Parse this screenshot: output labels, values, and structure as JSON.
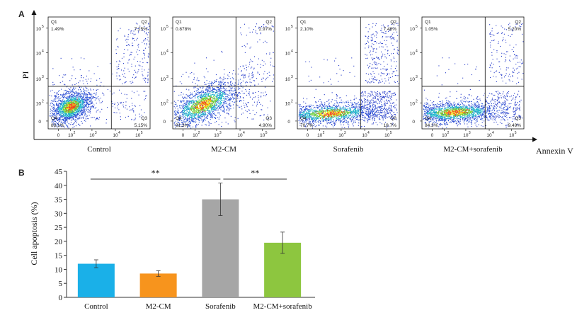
{
  "panel_a": {
    "letter": "A",
    "y_axis_label": "PI",
    "x_axis_label": "Annexin V",
    "plots": [
      {
        "label": "Control",
        "q1": "Q1",
        "q1_value": "1.49%",
        "q2": "Q2",
        "q2_value": "7.25%",
        "q3": "Q3",
        "q3_value": "5.15%",
        "q4": "Q4",
        "q4_value": "86.1%"
      },
      {
        "label": "M2-CM",
        "q1": "Q1",
        "q1_value": "0.878%",
        "q2": "Q2",
        "q2_value": "2.97%",
        "q3": "Q3",
        "q3_value": "4.90%",
        "q4": "Q4",
        "q4_value": "91.3%"
      },
      {
        "label": "Sorafenib",
        "q1": "Q1",
        "q1_value": "2.10%",
        "q2": "Q2",
        "q2_value": "7.48%",
        "q3": "Q3",
        "q3_value": "19.7%",
        "q4": "Q4",
        "q4_value": "70.7%"
      },
      {
        "label": "M2-CM+sorafenib",
        "q1": "Q1",
        "q1_value": "1.05%",
        "q2": "Q2",
        "q2_value": "5.20%",
        "q3": "Q3",
        "q3_value": "9.49%",
        "q4": "Q4",
        "q4_value": "84.3%"
      }
    ],
    "y_ticks": [
      "10",
      "10",
      "10",
      "10",
      "0"
    ],
    "y_tick_exponents": [
      "5",
      "4",
      "3",
      "2",
      ""
    ],
    "x_ticks": [
      "0",
      "10",
      "10",
      "10",
      "10"
    ],
    "x_tick_exponents": [
      "",
      "2",
      "3",
      "4",
      "5"
    ]
  },
  "colors": {
    "control": "#1ab0e8",
    "m2cm": "#f7941d",
    "sorafenib": "#a6a6a6",
    "combo": "#8dc63f"
  },
  "chart_data": {
    "type": "bar",
    "panel_letter": "B",
    "categories": [
      "Control",
      "M2-CM",
      "Sorafenib",
      "M2-CM+sorafenib"
    ],
    "values": [
      12,
      8.5,
      35,
      19.5
    ],
    "errors": [
      1.4,
      1.0,
      5.8,
      3.8
    ],
    "ylabel": "Cell apoptosis (%)",
    "xlabel": "",
    "ylim": [
      0,
      45
    ],
    "yticks": [
      0,
      5,
      10,
      15,
      20,
      25,
      30,
      35,
      40,
      45
    ],
    "grid": false,
    "significance": [
      {
        "from": 0,
        "to": 2,
        "label": "**"
      },
      {
        "from": 2,
        "to": 3,
        "label": "**"
      }
    ]
  }
}
